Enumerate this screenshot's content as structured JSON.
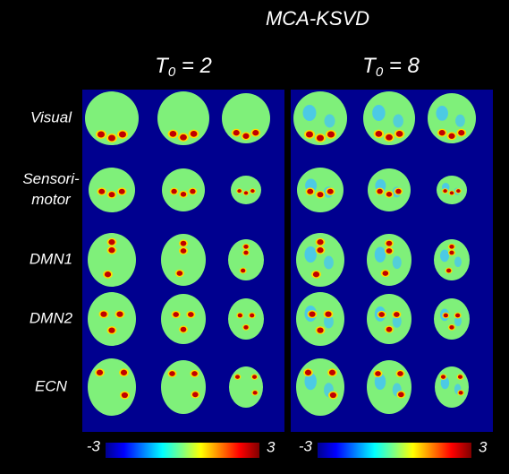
{
  "title": "MCA-KSVD",
  "columns": [
    {
      "symbol": "T",
      "subscript": "0",
      "rest": " = 2"
    },
    {
      "symbol": "T",
      "subscript": "0",
      "rest": " = 8"
    }
  ],
  "rows": [
    {
      "lines": [
        "Visual"
      ]
    },
    {
      "lines": [
        "Sensori-",
        "motor"
      ]
    },
    {
      "lines": [
        "DMN1"
      ]
    },
    {
      "lines": [
        "DMN2"
      ]
    },
    {
      "lines": [
        "ECN"
      ]
    }
  ],
  "colorbars": [
    {
      "min": -3,
      "max": 3
    },
    {
      "min": -3,
      "max": 3
    }
  ]
}
